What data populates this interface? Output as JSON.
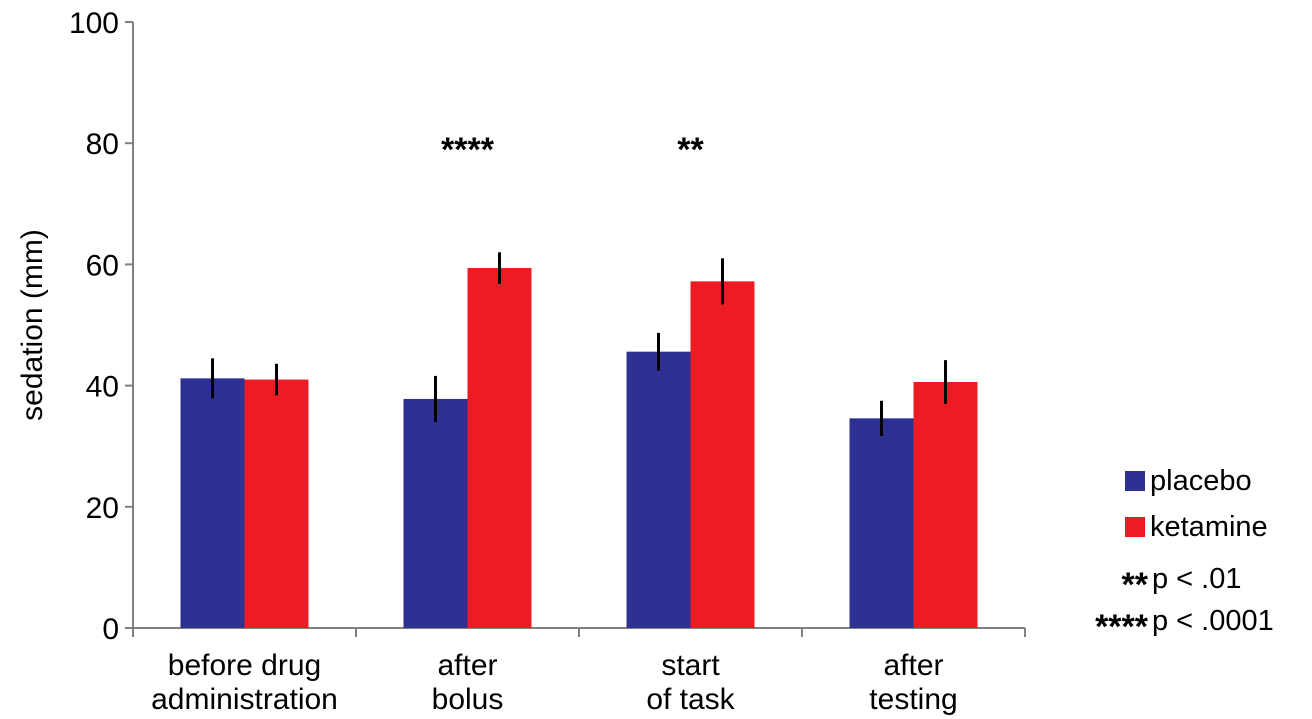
{
  "chart_data": {
    "type": "bar",
    "categories": [
      [
        "before drug",
        "administration"
      ],
      [
        "after",
        "bolus"
      ],
      [
        "start",
        "of task"
      ],
      [
        "after",
        "testing"
      ]
    ],
    "series": [
      {
        "name": "placebo",
        "color": "#2e3192",
        "values": [
          41.2,
          37.8,
          45.6,
          34.6
        ],
        "errors": [
          3.3,
          3.8,
          3.1,
          2.9
        ]
      },
      {
        "name": "ketamine",
        "color": "#ed1c24",
        "values": [
          41.0,
          59.4,
          57.2,
          40.6
        ],
        "errors": [
          2.6,
          2.6,
          3.8,
          3.6
        ]
      }
    ],
    "ylabel": "sedation (mm)",
    "ylim": [
      0,
      100
    ],
    "yticks": [
      0,
      20,
      40,
      60,
      80,
      100
    ],
    "significance": [
      {
        "category_index": 1,
        "marker": "****"
      },
      {
        "category_index": 2,
        "marker": "**"
      }
    ],
    "legend": {
      "position": "right",
      "entries": [
        {
          "label": "placebo",
          "color": "#2e3192"
        },
        {
          "label": "ketamine",
          "color": "#ed1c24"
        }
      ],
      "notes": [
        {
          "marker": "**",
          "text": "p < .01"
        },
        {
          "marker": "****",
          "text": "p < .0001"
        }
      ]
    }
  }
}
